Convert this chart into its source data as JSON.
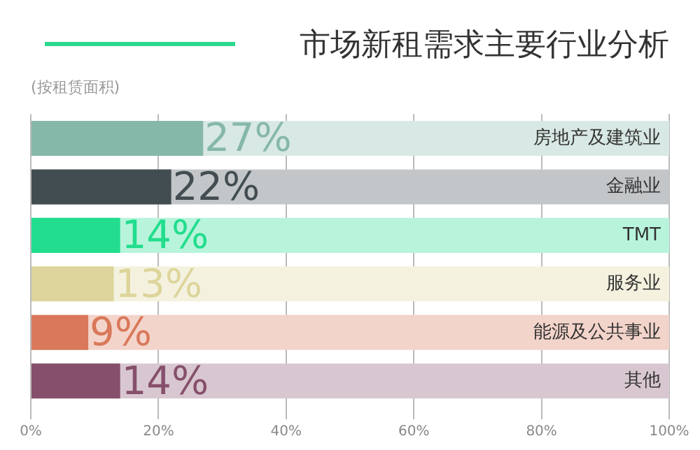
{
  "chart_data": {
    "type": "bar",
    "orientation": "horizontal",
    "title": "市场新租需求主要行业分析",
    "subtitle": "(按租赁面积)",
    "categories": [
      "房地产及建筑业",
      "金融业",
      "TMT",
      "服务业",
      "能源及公共事业",
      "其他"
    ],
    "values": [
      27,
      22,
      14,
      13,
      9,
      14
    ],
    "colors": [
      "#86b8aa",
      "#424d52",
      "#22dd8e",
      "#ddd59b",
      "#d9785a",
      "#86506c"
    ],
    "value_labels": [
      "27%",
      "22%",
      "14%",
      "13%",
      "9%",
      "14%"
    ],
    "xlim": [
      0,
      100
    ],
    "xticks": [
      {
        "value": 0,
        "label": "0%"
      },
      {
        "value": 20,
        "label": "20%"
      },
      {
        "value": 40,
        "label": "40%"
      },
      {
        "value": 60,
        "label": "60%"
      },
      {
        "value": 80,
        "label": "80%"
      },
      {
        "value": 100,
        "label": "100%"
      }
    ],
    "grid": "x",
    "legend": false
  }
}
